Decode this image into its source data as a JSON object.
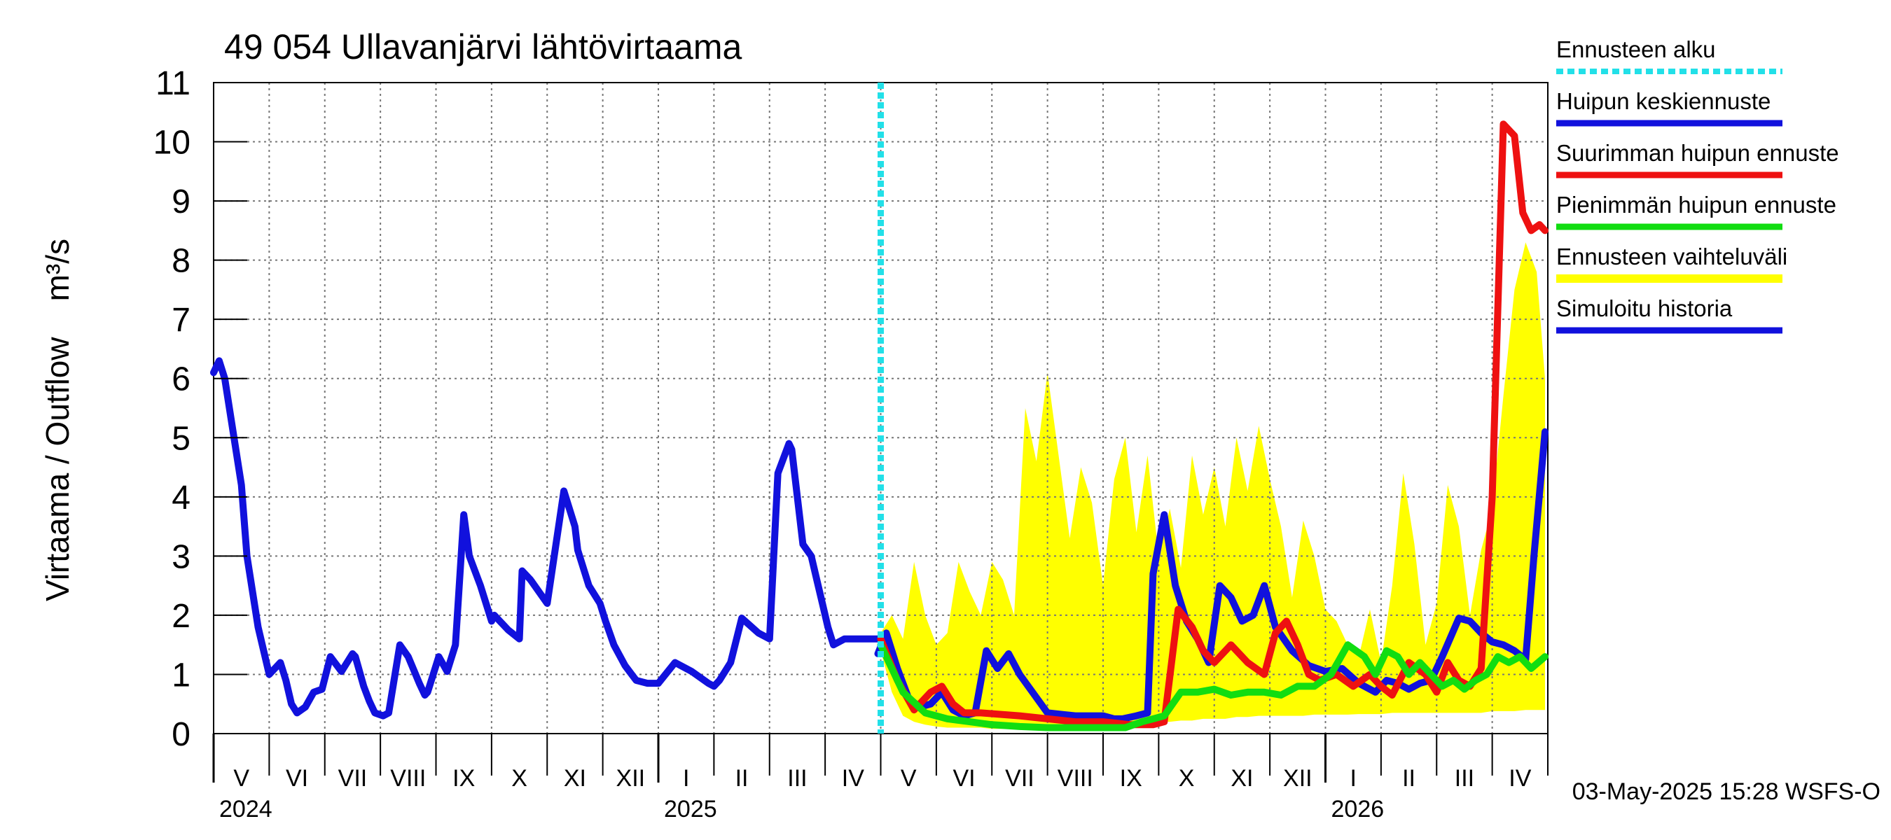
{
  "chart_data": {
    "type": "line",
    "title": "49 054 Ullavanjärvi lähtövirtaama",
    "ylabel": "Virtaama / Outflow    m³/s",
    "ylim": [
      0,
      11
    ],
    "yticks": [
      0,
      1,
      2,
      3,
      4,
      5,
      6,
      7,
      8,
      9,
      10,
      11
    ],
    "x_range_months": [
      0,
      24
    ],
    "month_labels": [
      "V",
      "VI",
      "VII",
      "VIII",
      "IX",
      "X",
      "XI",
      "XII",
      "I",
      "II",
      "III",
      "IV",
      "V",
      "VI",
      "VII",
      "VIII",
      "IX",
      "X",
      "XI",
      "XII",
      "I",
      "II",
      "III",
      "IV"
    ],
    "year_labels": [
      {
        "label": "2024",
        "month": 0
      },
      {
        "label": "2025",
        "month": 8
      },
      {
        "label": "2026",
        "month": 20
      }
    ],
    "forecast_start_month": 12.0,
    "timestamp": "03-May-2025 15:28 WSFS-O",
    "legend": [
      {
        "key": "forecast_start",
        "label": "Ennusteen alku",
        "color": "#22e0e8",
        "style": "dotted"
      },
      {
        "key": "median",
        "label": "Huipun keskiennuste",
        "color": "#1111dd",
        "style": "solid"
      },
      {
        "key": "max",
        "label": "Suurimman huipun ennuste",
        "color": "#ee1111",
        "style": "solid"
      },
      {
        "key": "min",
        "label": "Pienimmän huipun ennuste",
        "color": "#11dd11",
        "style": "solid"
      },
      {
        "key": "range",
        "label": "Ennusteen vaihteluväli",
        "color": "#ffff00",
        "style": "band"
      },
      {
        "key": "history",
        "label": "Simuloitu historia",
        "color": "#1111dd",
        "style": "solid"
      }
    ],
    "series": [
      {
        "name": "Simuloitu historia",
        "key": "history",
        "color": "#1111dd",
        "x": [
          0,
          0.1,
          0.2,
          0.5,
          0.6,
          0.8,
          1.0,
          1.2,
          1.3,
          1.4,
          1.5,
          1.65,
          1.8,
          1.95,
          2.1,
          2.3,
          2.5,
          2.55,
          2.7,
          2.8,
          2.9,
          3.05,
          3.15,
          3.35,
          3.5,
          3.7,
          3.8,
          3.85,
          4.05,
          4.2,
          4.35,
          4.5,
          4.6,
          4.8,
          5.0,
          5.05,
          5.15,
          5.3,
          5.5,
          5.55,
          5.7,
          6.0,
          6.3,
          6.5,
          6.55,
          6.75,
          6.95,
          7.05,
          7.2,
          7.4,
          7.6,
          7.8,
          8.0,
          8.3,
          8.6,
          8.9,
          9.0,
          9.1,
          9.3,
          9.5,
          9.8,
          10.0,
          10.15,
          10.35,
          10.4,
          10.6,
          10.75,
          10.85,
          10.95,
          11.05,
          11.15,
          11.35,
          11.55,
          11.75,
          11.95,
          12.0
        ],
        "y": [
          6.1,
          6.3,
          6.0,
          4.2,
          3.0,
          1.8,
          1.0,
          1.2,
          0.9,
          0.5,
          0.35,
          0.45,
          0.7,
          0.75,
          1.3,
          1.05,
          1.35,
          1.3,
          0.8,
          0.55,
          0.35,
          0.3,
          0.35,
          1.5,
          1.3,
          0.85,
          0.65,
          0.7,
          1.3,
          1.05,
          1.5,
          3.7,
          3.0,
          2.5,
          1.9,
          2.0,
          1.9,
          1.75,
          1.6,
          2.75,
          2.6,
          2.2,
          4.1,
          3.5,
          3.1,
          2.5,
          2.2,
          1.9,
          1.5,
          1.15,
          0.9,
          0.85,
          0.85,
          1.2,
          1.05,
          0.85,
          0.8,
          0.9,
          1.2,
          1.95,
          1.7,
          1.6,
          4.4,
          4.9,
          4.8,
          3.2,
          3.0,
          2.6,
          2.2,
          1.8,
          1.5,
          1.6,
          1.6,
          1.6,
          1.6,
          1.6
        ]
      },
      {
        "name": "Huipun keskiennuste",
        "key": "median",
        "color": "#1111dd",
        "x": [
          11.95,
          12.1,
          12.3,
          12.5,
          12.7,
          12.9,
          13.1,
          13.3,
          13.5,
          13.7,
          13.9,
          14.1,
          14.3,
          14.5,
          15.0,
          15.5,
          16.0,
          16.2,
          16.35,
          16.6,
          16.8,
          16.9,
          17.1,
          17.3,
          17.5,
          17.7,
          17.9,
          18.1,
          18.3,
          18.5,
          18.7,
          18.9,
          19.1,
          19.4,
          19.7,
          20.0,
          20.3,
          20.6,
          20.9,
          21.1,
          21.3,
          21.5,
          21.7,
          21.9,
          22.1,
          22.4,
          22.6,
          22.8,
          23.0,
          23.2,
          23.4,
          23.6,
          23.75,
          23.95
        ],
        "y": [
          1.35,
          1.7,
          1.1,
          0.6,
          0.45,
          0.5,
          0.7,
          0.4,
          0.3,
          0.35,
          1.4,
          1.1,
          1.35,
          1.0,
          0.35,
          0.3,
          0.3,
          0.25,
          0.25,
          0.3,
          0.35,
          2.7,
          3.7,
          2.5,
          1.9,
          1.6,
          1.2,
          2.5,
          2.3,
          1.9,
          2.0,
          2.5,
          1.8,
          1.4,
          1.15,
          1.05,
          1.1,
          0.85,
          0.7,
          0.9,
          0.85,
          0.75,
          0.85,
          0.9,
          1.3,
          1.95,
          1.9,
          1.7,
          1.55,
          1.5,
          1.4,
          1.25,
          3.0,
          5.1
        ]
      },
      {
        "name": "Suurimman huipun ennuste",
        "key": "max",
        "color": "#ee1111",
        "x": [
          12.0,
          12.3,
          12.6,
          12.9,
          13.1,
          13.3,
          13.5,
          13.8,
          14.5,
          15.0,
          15.5,
          16.0,
          16.5,
          16.9,
          17.1,
          17.35,
          17.6,
          17.8,
          18.0,
          18.3,
          18.6,
          18.9,
          19.1,
          19.3,
          19.5,
          19.7,
          19.9,
          20.2,
          20.5,
          20.8,
          21.0,
          21.2,
          21.5,
          21.8,
          22.0,
          22.2,
          22.4,
          22.6,
          22.8,
          23.0,
          23.2,
          23.4,
          23.55,
          23.7,
          23.85,
          23.95
        ],
        "y": [
          1.6,
          0.9,
          0.4,
          0.7,
          0.8,
          0.5,
          0.35,
          0.35,
          0.3,
          0.25,
          0.2,
          0.2,
          0.15,
          0.15,
          0.2,
          2.1,
          1.8,
          1.4,
          1.2,
          1.5,
          1.2,
          1.0,
          1.7,
          1.9,
          1.5,
          1.0,
          0.9,
          1.0,
          0.8,
          1.0,
          0.8,
          0.65,
          1.2,
          1.0,
          0.7,
          1.2,
          0.9,
          0.8,
          1.1,
          4.0,
          10.3,
          10.1,
          8.8,
          8.5,
          8.6,
          8.5
        ]
      },
      {
        "name": "Pienimmän huipun ennuste",
        "key": "min",
        "color": "#11dd11",
        "x": [
          12.0,
          12.4,
          12.8,
          13.2,
          13.6,
          14.0,
          14.5,
          15.0,
          15.5,
          16.0,
          16.4,
          16.7,
          16.9,
          17.1,
          17.4,
          17.7,
          18.0,
          18.3,
          18.6,
          18.9,
          19.2,
          19.5,
          19.8,
          20.1,
          20.4,
          20.7,
          20.9,
          21.1,
          21.3,
          21.5,
          21.7,
          21.9,
          22.1,
          22.3,
          22.5,
          22.7,
          22.9,
          23.1,
          23.3,
          23.5,
          23.7,
          23.95
        ],
        "y": [
          1.5,
          0.7,
          0.35,
          0.25,
          0.2,
          0.15,
          0.12,
          0.1,
          0.1,
          0.1,
          0.1,
          0.2,
          0.25,
          0.3,
          0.7,
          0.7,
          0.75,
          0.65,
          0.7,
          0.7,
          0.65,
          0.8,
          0.8,
          1.0,
          1.5,
          1.3,
          1.0,
          1.4,
          1.3,
          1.0,
          1.2,
          1.0,
          0.8,
          0.9,
          0.75,
          0.9,
          1.0,
          1.3,
          1.2,
          1.3,
          1.1,
          1.3
        ]
      }
    ],
    "range_band": {
      "x": [
        12.0,
        12.2,
        12.4,
        12.6,
        12.8,
        13.0,
        13.2,
        13.4,
        13.6,
        13.8,
        14.0,
        14.2,
        14.4,
        14.6,
        14.8,
        15.0,
        15.2,
        15.4,
        15.6,
        15.8,
        16.0,
        16.2,
        16.4,
        16.6,
        16.8,
        17.0,
        17.2,
        17.4,
        17.6,
        17.8,
        18.0,
        18.2,
        18.4,
        18.6,
        18.8,
        19.0,
        19.2,
        19.4,
        19.6,
        19.8,
        20.0,
        20.2,
        20.4,
        20.6,
        20.8,
        21.0,
        21.2,
        21.4,
        21.6,
        21.8,
        22.0,
        22.2,
        22.4,
        22.6,
        22.8,
        23.0,
        23.2,
        23.4,
        23.6,
        23.8,
        23.95
      ],
      "upper": [
        1.7,
        2.0,
        1.6,
        2.9,
        2.0,
        1.5,
        1.7,
        2.9,
        2.4,
        2.0,
        2.9,
        2.6,
        2.0,
        5.5,
        4.6,
        6.1,
        4.7,
        3.3,
        4.5,
        3.9,
        2.5,
        4.3,
        5.0,
        3.4,
        4.7,
        3.0,
        3.8,
        2.8,
        4.7,
        3.7,
        4.5,
        3.5,
        5.0,
        4.1,
        5.2,
        4.3,
        3.5,
        2.3,
        3.6,
        3.0,
        2.1,
        1.9,
        1.5,
        1.3,
        2.1,
        1.2,
        2.5,
        4.4,
        3.2,
        1.5,
        2.2,
        4.2,
        3.5,
        2.0,
        3.1,
        3.8,
        5.7,
        7.5,
        8.3,
        7.8,
        6.0
      ],
      "lower": [
        1.4,
        0.7,
        0.3,
        0.2,
        0.15,
        0.12,
        0.1,
        0.1,
        0.1,
        0.1,
        0.08,
        0.08,
        0.08,
        0.08,
        0.08,
        0.08,
        0.08,
        0.08,
        0.08,
        0.08,
        0.08,
        0.08,
        0.1,
        0.12,
        0.15,
        0.2,
        0.2,
        0.22,
        0.22,
        0.25,
        0.25,
        0.25,
        0.28,
        0.28,
        0.3,
        0.3,
        0.3,
        0.3,
        0.3,
        0.32,
        0.32,
        0.32,
        0.32,
        0.33,
        0.33,
        0.33,
        0.35,
        0.35,
        0.35,
        0.35,
        0.35,
        0.35,
        0.35,
        0.35,
        0.35,
        0.38,
        0.38,
        0.38,
        0.4,
        0.4,
        0.4
      ]
    }
  }
}
